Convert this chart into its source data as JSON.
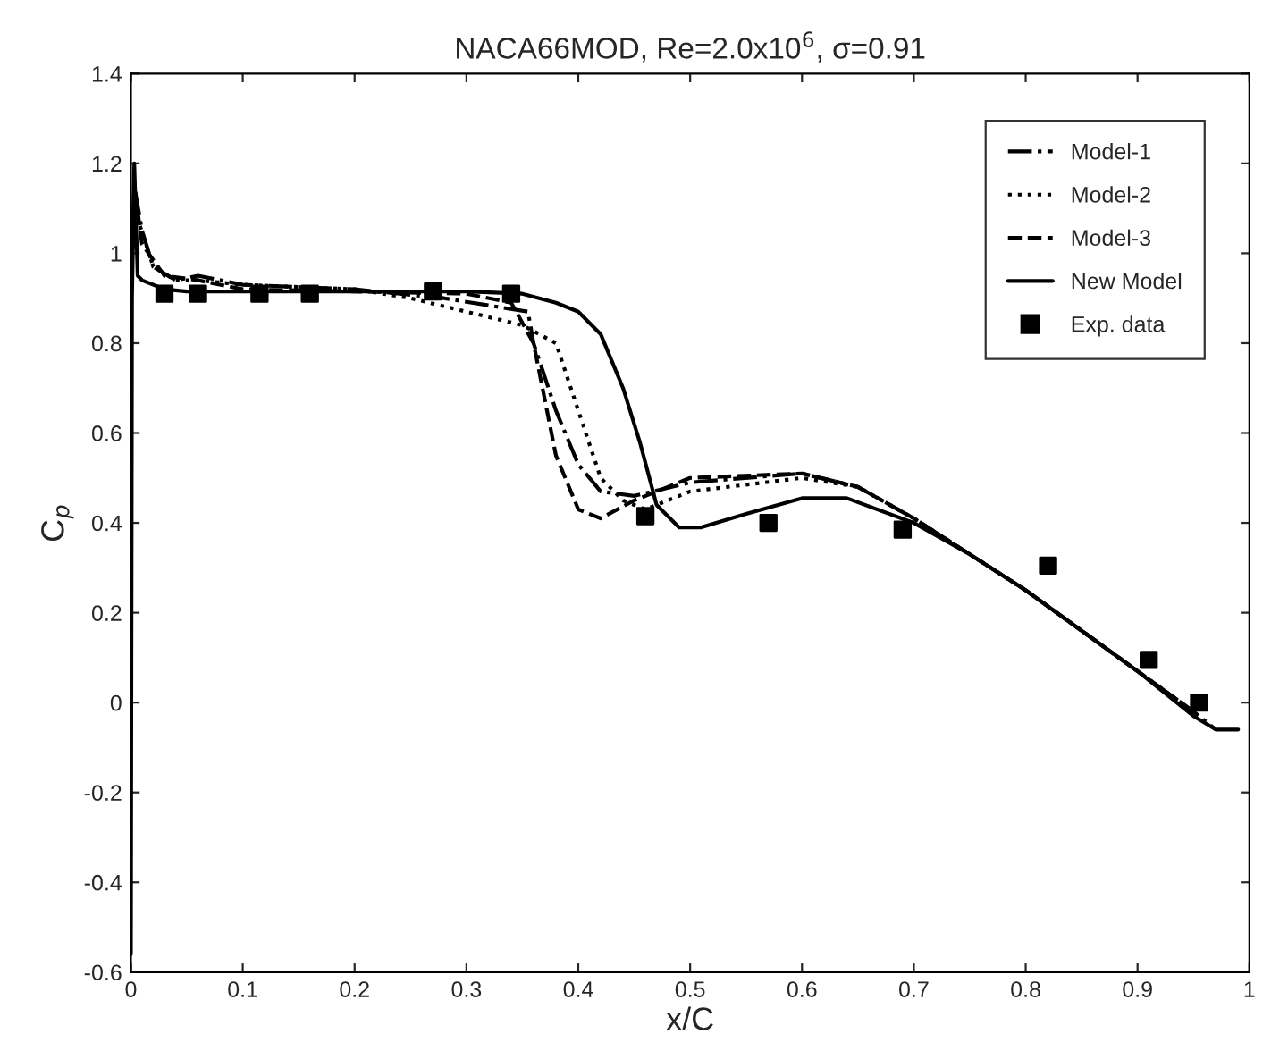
{
  "chart_data": {
    "type": "line",
    "title": "NACA66MOD, Re=2.0x10$^{6}$, σ=0.91",
    "xlabel": "x/C",
    "ylabel": "C$_{p}$",
    "xlim": [
      0,
      1
    ],
    "ylim": [
      -0.6,
      1.4
    ],
    "xticks": [
      0,
      0.1,
      0.2,
      0.3,
      0.4,
      0.5,
      0.6,
      0.7,
      0.8,
      0.9,
      1
    ],
    "yticks": [
      -0.6,
      -0.4,
      -0.2,
      0,
      0.2,
      0.4,
      0.6,
      0.8,
      1,
      1.2,
      1.4
    ],
    "grid": false,
    "legend": "top right",
    "series": [
      {
        "name": "Model-1",
        "line_style": "dashdot",
        "color": "#000000",
        "x": [
          0,
          0.003,
          0.01,
          0.02,
          0.04,
          0.06,
          0.1,
          0.2,
          0.28,
          0.33,
          0.355,
          0.36,
          0.38,
          0.4,
          0.42,
          0.45,
          0.5,
          0.6,
          0.65,
          0.7,
          0.8,
          0.9,
          0.95,
          0.97
        ],
        "values": [
          0.9,
          1.15,
          1.05,
          0.97,
          0.94,
          0.95,
          0.93,
          0.92,
          0.9,
          0.88,
          0.87,
          0.8,
          0.65,
          0.53,
          0.47,
          0.46,
          0.49,
          0.51,
          0.48,
          0.41,
          0.25,
          0.07,
          -0.02,
          -0.06
        ]
      },
      {
        "name": "Model-2",
        "line_style": "dotted",
        "color": "#000000",
        "x": [
          0,
          0.003,
          0.02,
          0.04,
          0.06,
          0.1,
          0.2,
          0.25,
          0.3,
          0.35,
          0.38,
          0.4,
          0.42,
          0.44,
          0.46,
          0.5,
          0.6,
          0.65,
          0.7,
          0.8,
          0.9,
          0.95
        ],
        "values": [
          0.9,
          1.1,
          0.97,
          0.94,
          0.94,
          0.93,
          0.92,
          0.9,
          0.87,
          0.84,
          0.8,
          0.65,
          0.5,
          0.45,
          0.43,
          0.47,
          0.5,
          0.48,
          0.41,
          0.25,
          0.07,
          -0.02
        ]
      },
      {
        "name": "Model-3",
        "line_style": "dashed",
        "color": "#000000",
        "x": [
          0,
          0.003,
          0.01,
          0.03,
          0.06,
          0.1,
          0.2,
          0.3,
          0.34,
          0.36,
          0.38,
          0.4,
          0.42,
          0.45,
          0.5,
          0.6,
          0.65,
          0.7,
          0.8,
          0.9,
          0.95
        ],
        "values": [
          0.9,
          1.15,
          1.02,
          0.95,
          0.94,
          0.92,
          0.915,
          0.91,
          0.89,
          0.8,
          0.55,
          0.43,
          0.41,
          0.45,
          0.5,
          0.51,
          0.48,
          0.41,
          0.25,
          0.07,
          -0.02
        ]
      },
      {
        "name": "New Model",
        "line_style": "solid",
        "color": "#000000",
        "x": [
          0,
          0.001,
          0.003,
          0.006,
          0.01,
          0.02,
          0.03,
          0.05,
          0.1,
          0.2,
          0.3,
          0.35,
          0.38,
          0.4,
          0.42,
          0.44,
          0.455,
          0.47,
          0.49,
          0.51,
          0.55,
          0.6,
          0.64,
          0.7,
          0.75,
          0.8,
          0.85,
          0.9,
          0.95,
          0.97,
          0.99
        ],
        "values": [
          -0.56,
          0.9,
          1.2,
          0.95,
          0.94,
          0.93,
          0.92,
          0.915,
          0.915,
          0.915,
          0.915,
          0.91,
          0.89,
          0.87,
          0.82,
          0.7,
          0.58,
          0.44,
          0.39,
          0.39,
          0.42,
          0.455,
          0.455,
          0.4,
          0.33,
          0.25,
          0.16,
          0.07,
          -0.03,
          -0.06,
          -0.06
        ]
      },
      {
        "name": "Exp. data",
        "type": "scatter",
        "marker": "square",
        "color": "#000000",
        "x": [
          0.03,
          0.06,
          0.115,
          0.16,
          0.27,
          0.34,
          0.46,
          0.57,
          0.69,
          0.82,
          0.91,
          0.955
        ],
        "values": [
          0.91,
          0.91,
          0.91,
          0.91,
          0.915,
          0.91,
          0.415,
          0.4,
          0.385,
          0.305,
          0.095,
          0.0
        ]
      }
    ]
  }
}
